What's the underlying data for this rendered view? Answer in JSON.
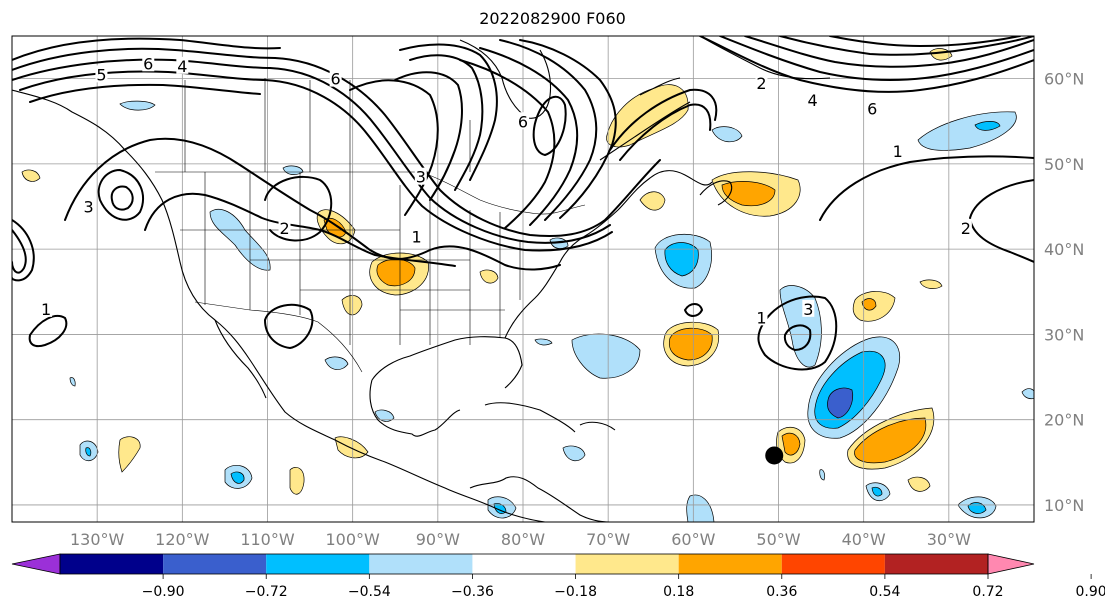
{
  "title": "2022082900 F060",
  "map": {
    "lon_range": [
      -140,
      -20
    ],
    "lat_range": [
      8,
      65
    ],
    "lon_ticks": [
      {
        "value": -130,
        "label": "130°W"
      },
      {
        "value": -120,
        "label": "120°W"
      },
      {
        "value": -110,
        "label": "110°W"
      },
      {
        "value": -100,
        "label": "100°W"
      },
      {
        "value": -90,
        "label": "90°W"
      },
      {
        "value": -80,
        "label": "80°W"
      },
      {
        "value": -70,
        "label": "70°W"
      },
      {
        "value": -60,
        "label": "60°W"
      },
      {
        "value": -50,
        "label": "50°W"
      },
      {
        "value": -40,
        "label": "40°W"
      },
      {
        "value": -30,
        "label": "30°W"
      }
    ],
    "lat_ticks": [
      {
        "value": 60,
        "label": "60°N"
      },
      {
        "value": 50,
        "label": "50°N"
      },
      {
        "value": 40,
        "label": "40°N"
      },
      {
        "value": 30,
        "label": "30°N"
      },
      {
        "value": 20,
        "label": "20°N"
      },
      {
        "value": 10,
        "label": "10°N"
      }
    ],
    "grid": true,
    "storm_marker": {
      "lon": -50.5,
      "lat": 15.8
    }
  },
  "colorbar": {
    "colors": [
      "#9b30d8",
      "#00008b",
      "#3a5fcd",
      "#00bfff",
      "#b0e0fa",
      "#ffffff",
      "#ffe88c",
      "#ffa500",
      "#ff4500",
      "#b22222",
      "#ff88b0"
    ],
    "ticks": [
      "−0.90",
      "−0.72",
      "−0.54",
      "−0.36",
      "−0.18",
      "0.18",
      "0.36",
      "0.54",
      "0.72",
      "0.90"
    ]
  },
  "contour_labels": [
    {
      "text": "6",
      "lon": -124,
      "lat": 61.8
    },
    {
      "text": "5",
      "lon": -129.5,
      "lat": 60.5
    },
    {
      "text": "4",
      "lon": -120,
      "lat": 61.5
    },
    {
      "text": "3",
      "lon": -131,
      "lat": 45
    },
    {
      "text": "2",
      "lon": -108,
      "lat": 42.5
    },
    {
      "text": "1",
      "lon": -92.5,
      "lat": 41.5
    },
    {
      "text": "6",
      "lon": -102,
      "lat": 60
    },
    {
      "text": "6",
      "lon": -80,
      "lat": 55
    },
    {
      "text": "3",
      "lon": -92,
      "lat": 48.5
    },
    {
      "text": "2",
      "lon": -52,
      "lat": 59.5
    },
    {
      "text": "4",
      "lon": -46,
      "lat": 57.5
    },
    {
      "text": "6",
      "lon": -39,
      "lat": 56.5
    },
    {
      "text": "1",
      "lon": -36,
      "lat": 51.5
    },
    {
      "text": "2",
      "lon": -28,
      "lat": 42.5
    },
    {
      "text": "1",
      "lon": -52,
      "lat": 32
    },
    {
      "text": "3",
      "lon": -46.5,
      "lat": 33
    },
    {
      "text": "1",
      "lon": -136,
      "lat": 33
    }
  ]
}
